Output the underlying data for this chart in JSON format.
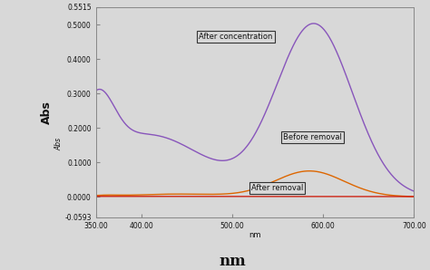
{
  "x_min": 350,
  "x_max": 700,
  "y_min": -0.0593,
  "y_max": 0.5515,
  "x_ticks": [
    350.0,
    400.0,
    500.0,
    600.0,
    700.0
  ],
  "y_ticks": [
    -0.0593,
    0.0,
    0.1,
    0.2,
    0.3,
    0.4,
    0.5,
    0.5515
  ],
  "y_tick_labels": [
    "-0.0593",
    "0.0000",
    "0.1000",
    "0.2000",
    "0.3000",
    "0.4000",
    "0.5000",
    "0.5515"
  ],
  "x_tick_labels": [
    "350.00",
    "400.00",
    "500.00",
    "600.00",
    "700.00"
  ],
  "xlabel_small": "nm",
  "xlabel_large": "nm",
  "ylabel_large": "Abs",
  "ylabel_small": "Abs",
  "bg_color": "#d8d8d8",
  "plot_bg": "#d8d8d8",
  "annotation_after_conc": "After concentration",
  "annotation_before_removal": "Before removal",
  "annotation_after_removal": "After removal",
  "color_purple": "#8855bb",
  "color_orange": "#dd6600",
  "color_red": "#cc1100",
  "spine_color": "#888888",
  "tick_color": "#555555",
  "text_color": "#111111"
}
